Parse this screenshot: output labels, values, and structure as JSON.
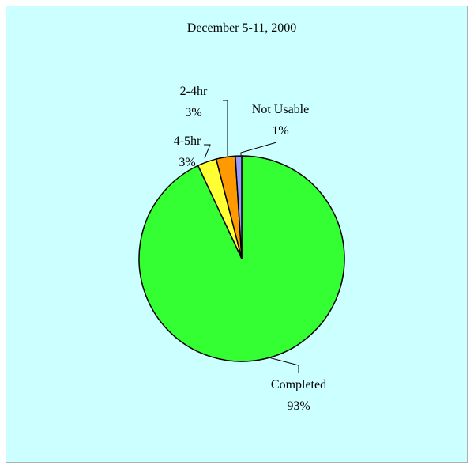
{
  "chart_data": {
    "type": "pie",
    "title": "December 5-11, 2000",
    "categories": [
      "Completed",
      "4-5hr",
      "2-4hr",
      "Not Usable"
    ],
    "values": [
      93,
      3,
      3,
      1
    ],
    "value_labels": [
      "93%",
      "3%",
      "3%",
      "1%"
    ],
    "colors": [
      "#33ff33",
      "#ffff33",
      "#ff9900",
      "#9999ff"
    ]
  }
}
